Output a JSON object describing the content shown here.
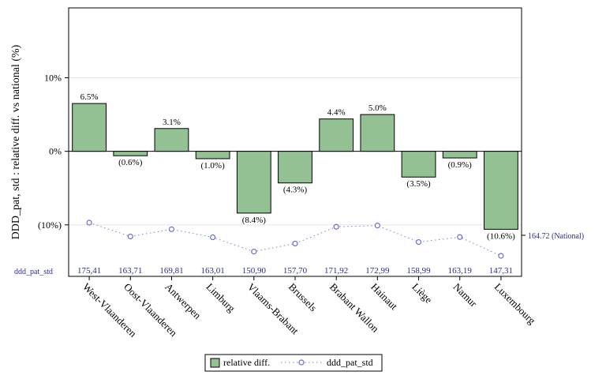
{
  "chart_data": {
    "type": "bar",
    "title": "",
    "ylabel": "DDD_pat, std : relative diff. vs national (%)",
    "xlabel": "",
    "ylim": [
      -17.0,
      19.5
    ],
    "yticks": [
      {
        "value": 10,
        "label": "10%"
      },
      {
        "value": 0,
        "label": "0%"
      },
      {
        "value": -10,
        "label": "(10%)"
      }
    ],
    "categories": [
      "West-Vlaanderen",
      "Oost-Vlaanderen",
      "Antwerpen",
      "Limburg",
      "Vlaams-Brabant",
      "Brussels",
      "Brabant Wallon",
      "Hainaut",
      "Liège",
      "Namur",
      "Luxembourg"
    ],
    "series": [
      {
        "name": "relative diff.",
        "type": "bar",
        "color": "#93c193",
        "values": [
          6.5,
          -0.6,
          3.1,
          -1.0,
          -8.4,
          -4.3,
          4.4,
          5.0,
          -3.5,
          -0.9,
          -10.6
        ],
        "labels": [
          "6.5%",
          "(0.6%)",
          "3.1%",
          "(1.0%)",
          "(8.4%)",
          "(4.3%)",
          "4.4%",
          "5.0%",
          "(3.5%)",
          "(0.9%)",
          "(10.6%)"
        ]
      },
      {
        "name": "ddd_pat_std",
        "type": "line",
        "style": "dotted-circles",
        "color": "#6a6ae0",
        "values": [
          175.41,
          163.71,
          169.81,
          163.01,
          150.9,
          157.7,
          171.92,
          172.99,
          158.99,
          163.19,
          147.31
        ],
        "labels": [
          "175,41",
          "163,71",
          "169,81",
          "163,01",
          "150,90",
          "157,70",
          "171,92",
          "172,99",
          "158,99",
          "163,19",
          "147,31"
        ]
      }
    ],
    "row_label": "ddd_pat_std",
    "reference": {
      "value": 164.72,
      "label": "164.72 (National)"
    },
    "legend": {
      "position": "bottom-center",
      "items": [
        "relative diff.",
        "ddd_pat_std"
      ]
    }
  }
}
